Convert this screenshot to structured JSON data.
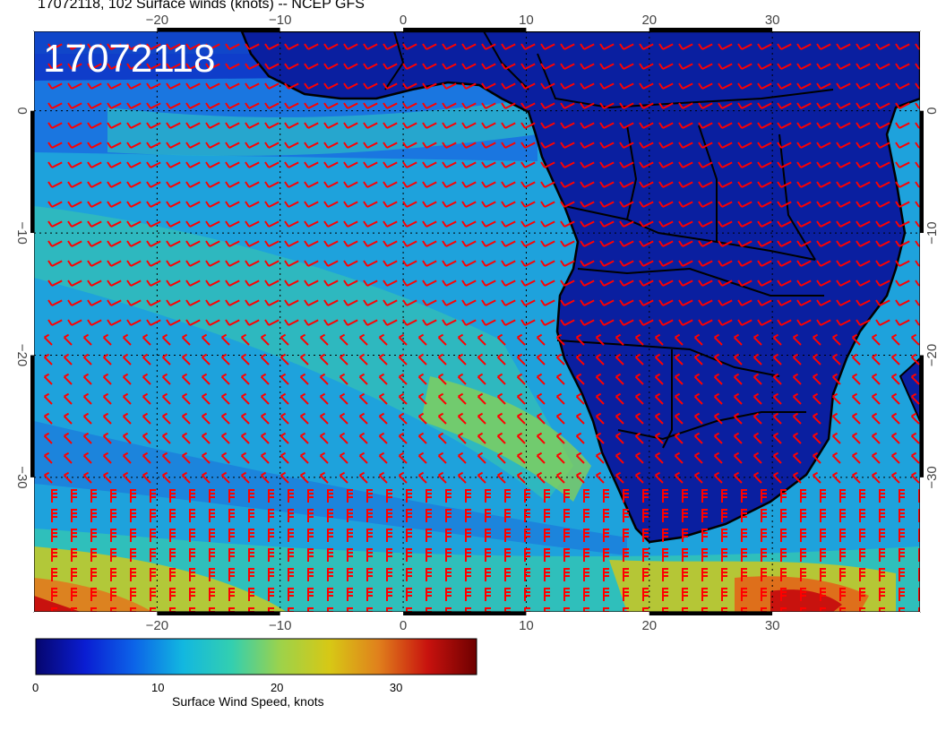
{
  "header": {
    "title": "17072118, 102 Surface winds (knots) -- NCEP GFS"
  },
  "map": {
    "stamp": "17072118",
    "lon_range": [
      -30,
      42
    ],
    "lat_range": [
      -41,
      6.5
    ],
    "lon_ticks": [
      "-20",
      "-10",
      "0",
      "10",
      "20",
      "30"
    ],
    "lat_ticks": [
      "0",
      "-10",
      "-20",
      "-30"
    ],
    "barb_color": "#ff0000",
    "coast_color": "#000000",
    "grid": true
  },
  "colorbar": {
    "label": "Surface Wind Speed, knots",
    "ticks": [
      "0",
      "10",
      "20",
      "30"
    ],
    "range": [
      0,
      37
    ],
    "colors": [
      "#06066e",
      "#0a1dd2",
      "#0c63e8",
      "#12b7e0",
      "#33cfb0",
      "#9dd24a",
      "#d7c815",
      "#e0801c",
      "#c8120e",
      "#6e0000"
    ]
  }
}
